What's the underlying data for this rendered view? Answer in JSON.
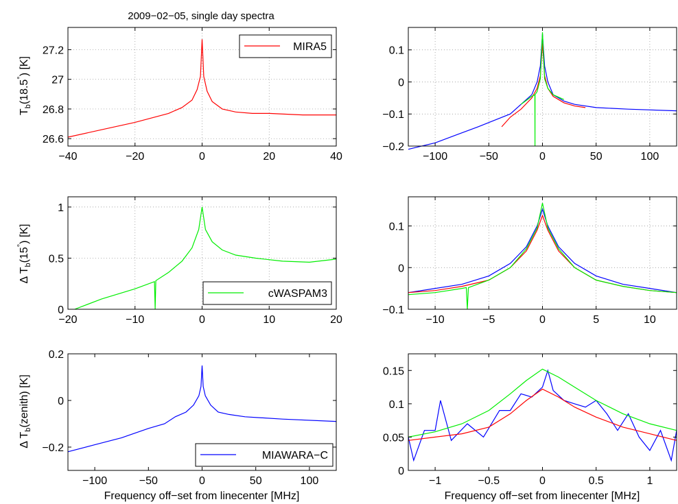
{
  "figure_title": "2009−02−05, single day spectra",
  "legend": {
    "mira5": "MIRA5",
    "cwaspam3": "cWASPAM3",
    "miawara": "MIAWARA−C"
  },
  "labels": {
    "yl1_main": "T",
    "yl1_sub": "b",
    "yl1_rest": "(18.5",
    "yl1_deg": "°",
    "yl1_end": ") [K]",
    "yl2_delta": "Δ T",
    "yl2_sub": "b",
    "yl2_rest": "(15",
    "yl2_deg": "°",
    "yl2_end": ") [K]",
    "yl3_delta": "Δ T",
    "yl3_sub": "b",
    "yl3_rest": "(zenith) [K]",
    "xlabel_left": "Frequency off−set from linecenter [MHz]",
    "xlabel_right": "Frequency off−set from linecenter [MHz]"
  },
  "colors": {
    "mira5": "#ff0000",
    "cwaspam3": "#00ee00",
    "miawara": "#0000ff"
  },
  "chart_data": [
    {
      "id": "p1",
      "type": "line",
      "xlim": [
        -40,
        40
      ],
      "ylim": [
        26.55,
        27.35
      ],
      "xticks": [
        -40,
        -20,
        0,
        20,
        40
      ],
      "xtick_labels": [
        "−40",
        "−20",
        "0",
        "20",
        "40"
      ],
      "yticks": [
        26.6,
        26.8,
        27.0,
        27.2
      ],
      "ytick_labels": [
        "26.6",
        "26.8",
        "27",
        "27.2"
      ],
      "grid": true,
      "legend_position": "top-right",
      "series": [
        {
          "name": "MIRA5",
          "color": "#ff0000",
          "x": [
            -40,
            -30,
            -20,
            -15,
            -10,
            -6,
            -3,
            -1.5,
            -0.5,
            0,
            0.5,
            1.5,
            3,
            6,
            10,
            15,
            20,
            30,
            40
          ],
          "y": [
            26.61,
            26.66,
            26.71,
            26.74,
            26.77,
            26.81,
            26.86,
            26.93,
            27.02,
            27.27,
            27.02,
            26.92,
            26.85,
            26.8,
            26.78,
            26.77,
            26.77,
            26.76,
            26.76
          ]
        }
      ]
    },
    {
      "id": "p2",
      "type": "line",
      "xlim": [
        -125,
        125
      ],
      "ylim": [
        -0.2,
        0.17
      ],
      "xticks": [
        -100,
        -50,
        0,
        50,
        100
      ],
      "xtick_labels": [
        "−100",
        "−50",
        "0",
        "50",
        "100"
      ],
      "yticks": [
        -0.2,
        -0.1,
        0,
        0.1
      ],
      "ytick_labels": [
        "−0.2",
        "−0.1",
        "0",
        "0.1"
      ],
      "grid": true,
      "series": [
        {
          "name": "MIAWARA−C",
          "color": "#0000ff",
          "x": [
            -125,
            -100,
            -80,
            -60,
            -45,
            -30,
            -20,
            -10,
            -5,
            -2,
            0,
            2,
            5,
            10,
            20,
            30,
            50,
            80,
            125
          ],
          "y": [
            -0.21,
            -0.19,
            -0.165,
            -0.14,
            -0.12,
            -0.1,
            -0.07,
            -0.04,
            0.0,
            0.05,
            0.15,
            0.05,
            0.0,
            -0.04,
            -0.06,
            -0.07,
            -0.08,
            -0.085,
            -0.09
          ]
        },
        {
          "name": "MIRA5",
          "color": "#ff0000",
          "x": [
            -38,
            -30,
            -20,
            -10,
            -5,
            -2,
            0,
            2,
            5,
            10,
            20,
            30,
            40
          ],
          "y": [
            -0.14,
            -0.11,
            -0.085,
            -0.05,
            -0.02,
            0.02,
            0.12,
            0.02,
            -0.02,
            -0.045,
            -0.065,
            -0.075,
            -0.08
          ]
        },
        {
          "name": "cWASPAM3",
          "color": "#00ee00",
          "x": [
            -20,
            -10,
            -7.1,
            -7,
            -6.9,
            -5,
            -2,
            0,
            2,
            5,
            10,
            20
          ],
          "y": [
            -0.07,
            -0.045,
            -0.04,
            -0.2,
            -0.04,
            -0.03,
            0.01,
            0.155,
            0.01,
            -0.02,
            -0.04,
            -0.055
          ]
        }
      ]
    },
    {
      "id": "p3",
      "type": "line",
      "xlim": [
        -20,
        20
      ],
      "ylim": [
        0,
        1.1
      ],
      "xticks": [
        -20,
        -10,
        0,
        10,
        20
      ],
      "xtick_labels": [
        "−20",
        "−10",
        "0",
        "10",
        "20"
      ],
      "yticks": [
        0,
        0.5,
        1
      ],
      "ytick_labels": [
        "0",
        "0.5",
        "1"
      ],
      "grid": true,
      "legend_position": "bottom-right",
      "series": [
        {
          "name": "cWASPAM3",
          "color": "#00ee00",
          "x": [
            -19,
            -15,
            -10,
            -7.1,
            -7,
            -6.9,
            -5,
            -3,
            -1.5,
            -0.5,
            0,
            0.5,
            1.5,
            3,
            5,
            8,
            12,
            16,
            20
          ],
          "y": [
            0.0,
            0.1,
            0.2,
            0.27,
            0.0,
            0.28,
            0.36,
            0.47,
            0.6,
            0.78,
            1.0,
            0.78,
            0.66,
            0.58,
            0.53,
            0.5,
            0.47,
            0.46,
            0.49
          ]
        }
      ]
    },
    {
      "id": "p4",
      "type": "line",
      "xlim": [
        -12.5,
        12.5
      ],
      "ylim": [
        -0.1,
        0.17
      ],
      "xticks": [
        -10,
        -5,
        0,
        5,
        10
      ],
      "xtick_labels": [
        "−10",
        "−5",
        "0",
        "5",
        "10"
      ],
      "yticks": [
        -0.1,
        0,
        0.1
      ],
      "ytick_labels": [
        "−0.1",
        "0",
        "0.1"
      ],
      "grid": true,
      "series": [
        {
          "name": "MIAWARA−C",
          "color": "#0000ff",
          "x": [
            -12.5,
            -10,
            -7.5,
            -5,
            -3,
            -1.5,
            -0.5,
            0,
            0.5,
            1.5,
            3,
            5,
            7.5,
            10,
            12.5
          ],
          "y": [
            -0.06,
            -0.05,
            -0.04,
            -0.02,
            0.01,
            0.05,
            0.1,
            0.14,
            0.1,
            0.05,
            0.01,
            -0.02,
            -0.04,
            -0.05,
            -0.06
          ]
        },
        {
          "name": "MIRA5",
          "color": "#ff0000",
          "x": [
            -12.5,
            -10,
            -7.5,
            -5,
            -3,
            -1.5,
            -0.5,
            0,
            0.5,
            1.5,
            3,
            5,
            7.5,
            10,
            12.5
          ],
          "y": [
            -0.06,
            -0.055,
            -0.045,
            -0.03,
            0.0,
            0.04,
            0.09,
            0.125,
            0.09,
            0.04,
            0.0,
            -0.03,
            -0.045,
            -0.055,
            -0.06
          ]
        },
        {
          "name": "cWASPAM3",
          "color": "#00ee00",
          "x": [
            -12.5,
            -10,
            -7.5,
            -7.1,
            -7,
            -6.9,
            -5,
            -3,
            -1.5,
            -0.5,
            0,
            0.5,
            1.5,
            3,
            5,
            7.5,
            10,
            12.5
          ],
          "y": [
            -0.065,
            -0.06,
            -0.05,
            -0.048,
            -0.1,
            -0.048,
            -0.03,
            0.0,
            0.045,
            0.095,
            0.155,
            0.095,
            0.045,
            0.0,
            -0.03,
            -0.045,
            -0.055,
            -0.06
          ]
        }
      ]
    },
    {
      "id": "p5",
      "type": "line",
      "xlim": [
        -125,
        125
      ],
      "ylim": [
        -0.3,
        0.2
      ],
      "xticks": [
        -100,
        -50,
        0,
        50,
        100
      ],
      "xtick_labels": [
        "−100",
        "−50",
        "0",
        "50",
        "100"
      ],
      "yticks": [
        -0.2,
        0,
        0.2
      ],
      "ytick_labels": [
        "−0.2",
        "0",
        "0.2"
      ],
      "grid": false,
      "legend_position": "bottom-right",
      "series": [
        {
          "name": "MIAWARA−C",
          "color": "#0000ff",
          "x": [
            -125,
            -100,
            -75,
            -50,
            -35,
            -25,
            -15,
            -8,
            -3,
            -1,
            0,
            1,
            3,
            8,
            15,
            25,
            40,
            75,
            125
          ],
          "y": [
            -0.22,
            -0.19,
            -0.16,
            -0.12,
            -0.1,
            -0.07,
            -0.05,
            -0.02,
            0.02,
            0.06,
            0.15,
            0.06,
            0.02,
            -0.02,
            -0.05,
            -0.06,
            -0.07,
            -0.08,
            -0.09
          ]
        }
      ]
    },
    {
      "id": "p6",
      "type": "line",
      "xlim": [
        -1.25,
        1.25
      ],
      "ylim": [
        0,
        0.175
      ],
      "xticks": [
        -1,
        -0.5,
        0,
        0.5,
        1
      ],
      "xtick_labels": [
        "−1",
        "−0.5",
        "0",
        "0.5",
        "1"
      ],
      "yticks": [
        0,
        0.05,
        0.1,
        0.15
      ],
      "ytick_labels": [
        "0",
        "0.05",
        "0.1",
        "0.15"
      ],
      "grid": false,
      "series": [
        {
          "name": "MIAWARA−C",
          "color": "#0000ff",
          "x": [
            -1.25,
            -1.2,
            -1.1,
            -1.0,
            -0.95,
            -0.85,
            -0.7,
            -0.55,
            -0.4,
            -0.3,
            -0.2,
            -0.1,
            0.0,
            0.05,
            0.1,
            0.2,
            0.3,
            0.4,
            0.5,
            0.6,
            0.7,
            0.8,
            0.9,
            1.0,
            1.1,
            1.2,
            1.25
          ],
          "y": [
            0.05,
            0.015,
            0.06,
            0.06,
            0.105,
            0.045,
            0.07,
            0.05,
            0.09,
            0.09,
            0.115,
            0.11,
            0.125,
            0.15,
            0.12,
            0.105,
            0.1,
            0.095,
            0.105,
            0.085,
            0.06,
            0.085,
            0.05,
            0.03,
            0.06,
            0.015,
            0.06
          ]
        },
        {
          "name": "MIRA5",
          "color": "#ff0000",
          "x": [
            -1.25,
            -1.0,
            -0.75,
            -0.5,
            -0.3,
            -0.15,
            0.0,
            0.15,
            0.3,
            0.5,
            0.75,
            1.0,
            1.25
          ],
          "y": [
            0.045,
            0.05,
            0.055,
            0.065,
            0.085,
            0.105,
            0.122,
            0.11,
            0.095,
            0.08,
            0.065,
            0.055,
            0.045
          ]
        },
        {
          "name": "cWASPAM3",
          "color": "#00ee00",
          "x": [
            -1.25,
            -1.0,
            -0.75,
            -0.5,
            -0.3,
            -0.15,
            0.0,
            0.15,
            0.3,
            0.5,
            0.75,
            1.0,
            1.25
          ],
          "y": [
            0.05,
            0.058,
            0.07,
            0.09,
            0.115,
            0.135,
            0.152,
            0.14,
            0.125,
            0.105,
            0.085,
            0.07,
            0.06
          ]
        }
      ]
    }
  ]
}
